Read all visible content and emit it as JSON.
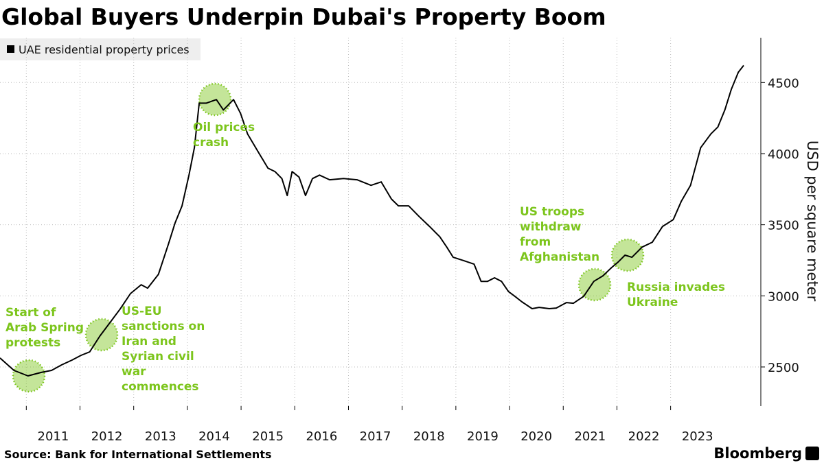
{
  "chart_data": {
    "type": "line",
    "title": "Global Buyers Underpin Dubai's Property Boom",
    "y_label": "USD per square meter",
    "source": "Source: Bank for International Settlements",
    "brand": "Bloomberg",
    "x": [
      2010.51,
      2010.77,
      2011.03,
      2011.28,
      2011.47,
      2011.66,
      2011.85,
      2012.02,
      2012.18,
      2012.37,
      2012.56,
      2012.75,
      2012.94,
      2013.14,
      2013.26,
      2013.46,
      2013.65,
      2013.77,
      2013.9,
      2014.03,
      2014.13,
      2014.22,
      2014.35,
      2014.54,
      2014.67,
      2014.86,
      2014.99,
      2015.12,
      2015.31,
      2015.5,
      2015.63,
      2015.76,
      2015.86,
      2015.95,
      2016.08,
      2016.2,
      2016.33,
      2016.46,
      2016.65,
      2016.91,
      2017.16,
      2017.42,
      2017.61,
      2017.8,
      2017.93,
      2018.12,
      2018.31,
      2018.51,
      2018.7,
      2018.83,
      2018.95,
      2019.15,
      2019.34,
      2019.47,
      2019.59,
      2019.72,
      2019.85,
      2019.98,
      2020.1,
      2020.23,
      2020.42,
      2020.55,
      2020.74,
      2020.87,
      2021.06,
      2021.19,
      2021.38,
      2021.57,
      2021.74,
      2021.9,
      2022.02,
      2022.15,
      2022.28,
      2022.47,
      2022.66,
      2022.85,
      2023.05,
      2023.2,
      2023.37,
      2023.56,
      2023.75,
      2023.88,
      2024.01,
      2024.13,
      2024.26,
      2024.36
    ],
    "series": [
      {
        "name": "UAE residential property prices",
        "color": "#000000",
        "values": [
          2563,
          2476,
          2437,
          2462,
          2476,
          2515,
          2548,
          2582,
          2606,
          2717,
          2813,
          2909,
          3016,
          3078,
          3054,
          3151,
          3367,
          3512,
          3633,
          3849,
          4042,
          4355,
          4355,
          4380,
          4307,
          4380,
          4283,
          4139,
          4018,
          3898,
          3874,
          3825,
          3705,
          3874,
          3835,
          3705,
          3825,
          3849,
          3816,
          3825,
          3816,
          3777,
          3801,
          3681,
          3633,
          3633,
          3560,
          3488,
          3416,
          3343,
          3271,
          3247,
          3223,
          3102,
          3102,
          3127,
          3102,
          3030,
          2996,
          2958,
          2910,
          2919,
          2910,
          2914,
          2953,
          2948,
          2996,
          3102,
          3141,
          3199,
          3237,
          3286,
          3271,
          3343,
          3377,
          3488,
          3536,
          3666,
          3777,
          4042,
          4139,
          4187,
          4307,
          4452,
          4572,
          4620
        ]
      }
    ],
    "xlim": [
      2010.51,
      2024.68
    ],
    "xticks": [
      2011,
      2012,
      2013,
      2014,
      2015,
      2016,
      2017,
      2018,
      2019,
      2020,
      2021,
      2022,
      2023
    ],
    "ylim": [
      2225,
      4815
    ],
    "yticks": [
      2500,
      3000,
      3500,
      4000,
      4500
    ],
    "grid": true,
    "legend": "top-left",
    "annotation_color": "#7cc51c",
    "annotations": [
      {
        "lines": [
          "Start of",
          "Arab Spring",
          "protests"
        ]
      },
      {
        "lines": [
          "US-EU",
          "sanctions on",
          "Iran and",
          "Syrian civil",
          "war",
          "commences"
        ]
      },
      {
        "lines": [
          "Oil prices",
          "crash"
        ]
      },
      {
        "lines": [
          "US troops",
          "withdraw",
          "from",
          "Afghanistan"
        ]
      },
      {
        "lines": [
          "Russia invades",
          "Ukraine"
        ]
      }
    ]
  }
}
